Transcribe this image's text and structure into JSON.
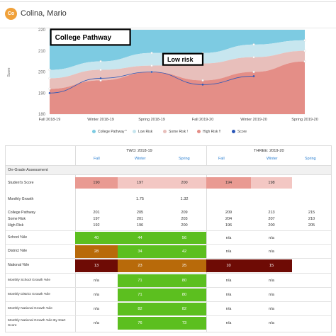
{
  "header": {
    "avatar_initials": "Co",
    "student_name": "Colina, Mario"
  },
  "chart_data": {
    "type": "area",
    "ylabel": "Score",
    "ylim": [
      180,
      220
    ],
    "yticks": [
      180,
      190,
      200,
      210,
      220
    ],
    "categories": [
      "Fall 2018-19",
      "Winter 2018-19",
      "Spring 2018-19",
      "Fall 2019-20",
      "Winter 2019-20",
      "Spring 2019-20"
    ],
    "bands": [
      {
        "name": "College Pathway",
        "values": [
          201,
          205,
          209,
          209,
          213,
          215
        ],
        "color": "#7dcbe2"
      },
      {
        "name": "Low Risk",
        "values": [
          197,
          201,
          203,
          204,
          207,
          210
        ],
        "color": "#c7e6ef"
      },
      {
        "name": "Some Risk",
        "values": [
          192,
          196,
          200,
          196,
          200,
          205
        ],
        "color": "#e8bfbb"
      },
      {
        "name": "High Risk",
        "values": [
          192,
          196,
          200,
          196,
          200,
          205
        ],
        "color": "#e48e87"
      }
    ],
    "score_series": {
      "name": "Score",
      "x_index": [
        0,
        1.0,
        2.0,
        3.0,
        4.0
      ],
      "values": [
        190,
        197,
        200,
        194,
        198
      ]
    },
    "annotations": [
      {
        "text": "College Pathway",
        "category_index": 0.05,
        "y": 216.5
      },
      {
        "text": "Low risk",
        "category_index": 2.25,
        "y": 206
      }
    ],
    "legend": [
      "College Pathway *",
      "Low Risk",
      "Some Risk !",
      "High Risk !!",
      "Score"
    ],
    "legend_colors": [
      "#7dcbe2",
      "#c7e6ef",
      "#e8bfbb",
      "#e48e87",
      "#2b57b8"
    ]
  },
  "table": {
    "years": [
      "TWO: 2018-19",
      "THREE: 2019-20"
    ],
    "seasons": [
      "Fall",
      "Winter",
      "Spring",
      "Fall",
      "Winter",
      "Spring"
    ],
    "section": "On-Grade Assessment",
    "students_score": {
      "label": "Student's Score",
      "values": [
        "190",
        "197",
        "200",
        "194",
        "198",
        ""
      ]
    },
    "monthly_growth": {
      "label": "Monthly Growth",
      "values": [
        "",
        "1.75",
        "1.32",
        "",
        "",
        ""
      ]
    },
    "pathways": {
      "labels": [
        "College Pathway",
        "Some Risk",
        "High Risk"
      ],
      "rows": [
        [
          "201",
          "205",
          "209",
          "209",
          "213",
          "215"
        ],
        [
          "197",
          "201",
          "203",
          "204",
          "207",
          "210"
        ],
        [
          "192",
          "196",
          "200",
          "196",
          "200",
          "205"
        ]
      ]
    },
    "school_pctile": {
      "label": "School %ile",
      "values": [
        "40",
        "44",
        "56",
        "n/a",
        "n/a",
        ""
      ]
    },
    "district_pctile": {
      "label": "District %ile",
      "values": [
        "28",
        "34",
        "42",
        "n/a",
        "n/a",
        ""
      ]
    },
    "national_pctile": {
      "label": "National %ile",
      "values": [
        "13",
        "23",
        "25",
        "10",
        "15",
        ""
      ]
    },
    "growth_rows": [
      {
        "label": "Monthly School Growth %ile",
        "values": [
          "n/a",
          "71",
          "80",
          "n/a",
          "n/a",
          ""
        ]
      },
      {
        "label": "Monthly District Growth %ile",
        "values": [
          "n/a",
          "71",
          "80",
          "n/a",
          "n/a",
          ""
        ]
      },
      {
        "label": "Monthly National Growth %ile",
        "values": [
          "n/a",
          "82",
          "82",
          "n/a",
          "n/a",
          ""
        ]
      },
      {
        "label": "Monthly National Growth %ile By Start",
        "label2": "Score",
        "values": [
          "n/a",
          "76",
          "73",
          "n/a",
          "n/a",
          ""
        ]
      }
    ]
  }
}
